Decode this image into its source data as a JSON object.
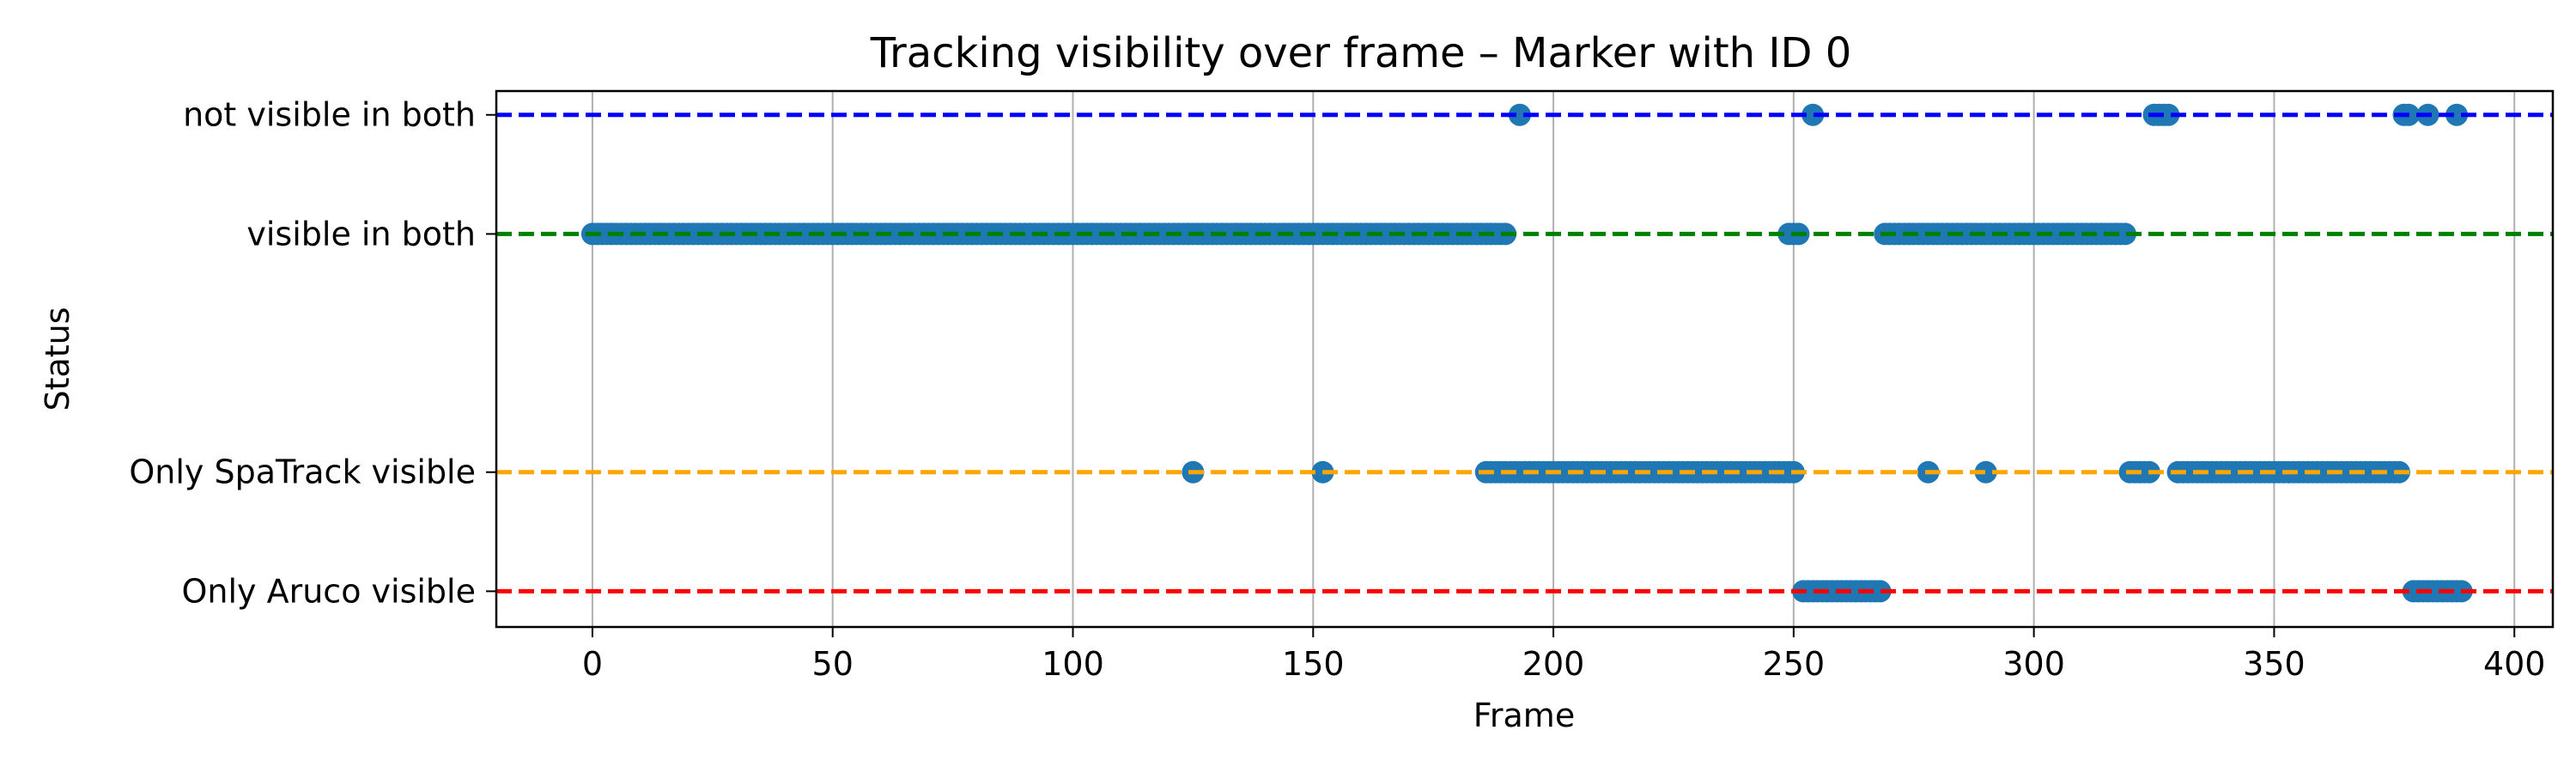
{
  "chart_data": {
    "type": "scatter",
    "title": "Tracking visibility over frame – Marker with ID 0",
    "xlabel": "Frame",
    "ylabel": "Status",
    "xlim": [
      -20,
      408
    ],
    "ylim": [
      -0.3,
      4.2
    ],
    "grid": "vertical",
    "x_ticks": [
      0,
      50,
      100,
      150,
      200,
      250,
      300,
      350,
      400
    ],
    "x_tick_labels": [
      "0",
      "50",
      "100",
      "150",
      "200",
      "250",
      "300",
      "350",
      "400"
    ],
    "marker_color": "#1f77b4",
    "categories": [
      {
        "label": "not visible in both",
        "y": 4,
        "line_color": "#0000ff"
      },
      {
        "label": "visible in both",
        "y": 3,
        "line_color": "#008000"
      },
      {
        "label": "Only SpaTrack visible",
        "y": 1,
        "line_color": "#ffa500"
      },
      {
        "label": "Only Aruco visible",
        "y": 0,
        "line_color": "#ff0000"
      }
    ],
    "series": [
      {
        "category": "not visible in both",
        "runs": [
          [
            193,
            193
          ],
          [
            254,
            254
          ],
          [
            325,
            328
          ],
          [
            377,
            378
          ],
          [
            382,
            382
          ],
          [
            388,
            388
          ]
        ]
      },
      {
        "category": "visible in both",
        "runs": [
          [
            0,
            190
          ],
          [
            249,
            251
          ],
          [
            269,
            319
          ]
        ]
      },
      {
        "category": "Only SpaTrack visible",
        "runs": [
          [
            125,
            125
          ],
          [
            152,
            152
          ],
          [
            186,
            250
          ],
          [
            278,
            278
          ],
          [
            290,
            290
          ],
          [
            320,
            324
          ],
          [
            330,
            376
          ]
        ]
      },
      {
        "category": "Only Aruco visible",
        "runs": [
          [
            252,
            268
          ],
          [
            379,
            389
          ]
        ]
      }
    ]
  }
}
